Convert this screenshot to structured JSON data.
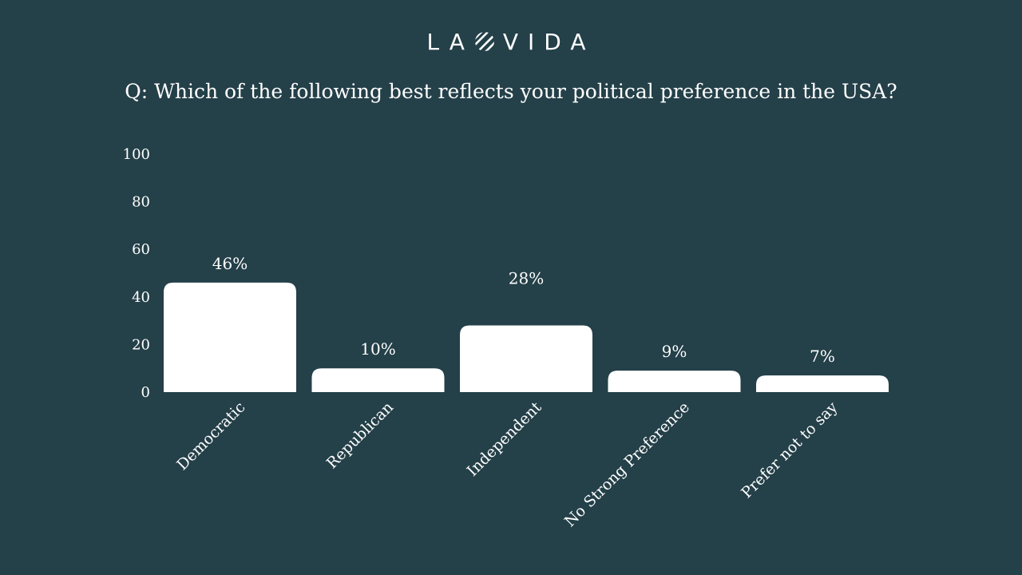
{
  "brand": {
    "logo_text": "LA VIDA",
    "logo_left": "LA",
    "logo_right": "VIDA"
  },
  "colors": {
    "background": "#244049",
    "bar": "#ffffff",
    "text": "#ffffff"
  },
  "chart_data": {
    "type": "bar",
    "title": "Q: Which of the following best reflects your political preference in the USA?",
    "categories": [
      "Democratic",
      "Republican",
      "Independent",
      "No Strong Preference",
      "Prefer not to say"
    ],
    "values": [
      46,
      10,
      28,
      9,
      7
    ],
    "data_labels": [
      "46%",
      "10%",
      "28%",
      "9%",
      "7%"
    ],
    "xlabel": "",
    "ylabel": "",
    "ylim": [
      0,
      100
    ],
    "yticks": [
      0,
      20,
      40,
      60,
      80,
      100
    ],
    "grid": false,
    "legend": "none"
  }
}
